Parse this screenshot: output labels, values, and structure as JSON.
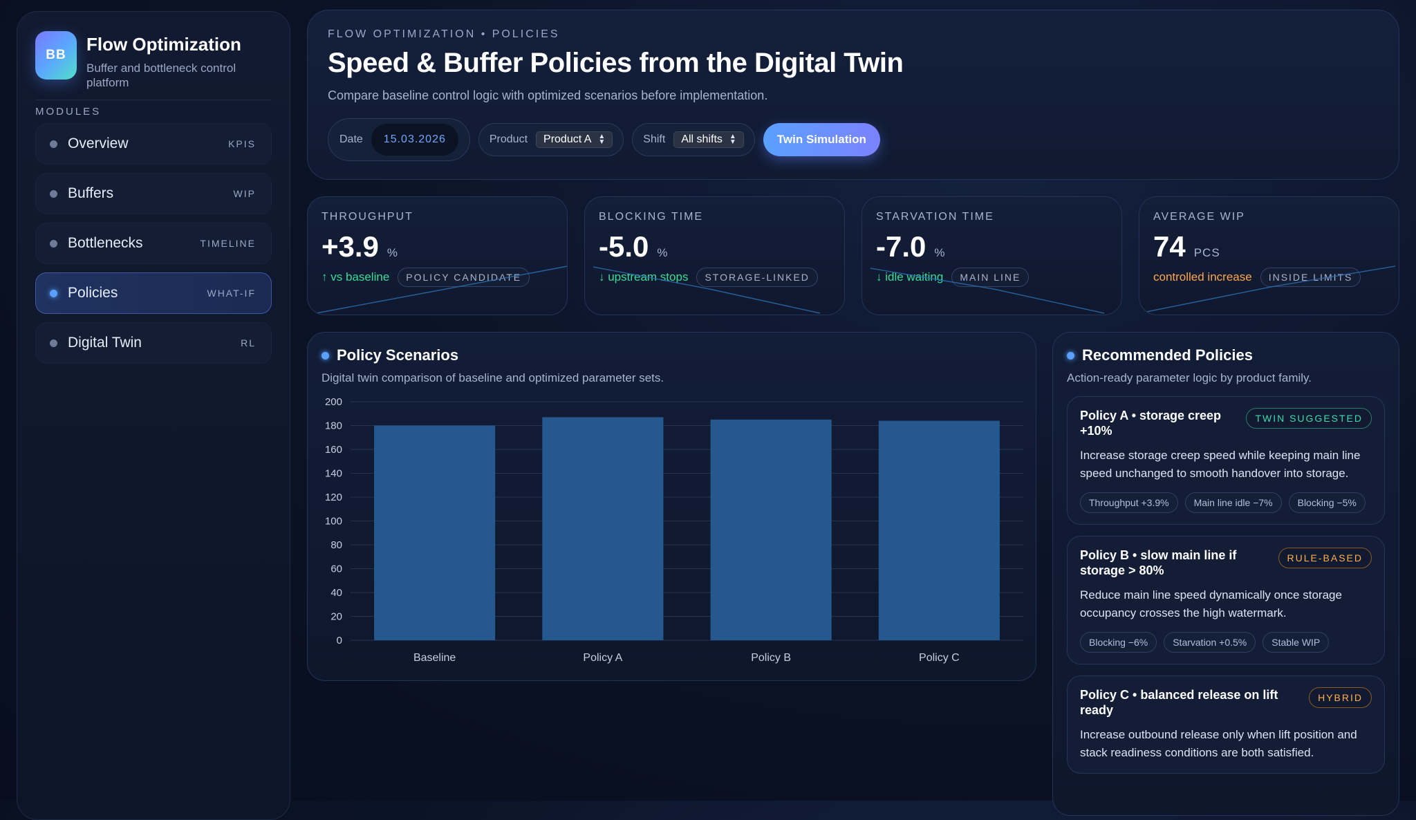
{
  "brand": {
    "logo": "BB",
    "title": "Flow Optimization",
    "subtitle": "Buffer and bottleneck control platform"
  },
  "sidebar": {
    "modules_label": "MODULES",
    "items": [
      {
        "label": "Overview",
        "tag": "KPIS",
        "active": false
      },
      {
        "label": "Buffers",
        "tag": "WIP",
        "active": false
      },
      {
        "label": "Bottlenecks",
        "tag": "TIMELINE",
        "active": false
      },
      {
        "label": "Policies",
        "tag": "WHAT-IF",
        "active": true
      },
      {
        "label": "Digital Twin",
        "tag": "RL",
        "active": false
      }
    ]
  },
  "header": {
    "eyebrow": "FLOW OPTIMIZATION • POLICIES",
    "title": "Speed & Buffer Policies from the Digital Twin",
    "subtitle": "Compare baseline control logic with optimized scenarios before implementation.",
    "date_label": "Date",
    "date_value": "15.03.2026",
    "product_label": "Product",
    "product_value": "Product A",
    "shift_label": "Shift",
    "shift_value": "All shifts",
    "action_label": "Twin Simulation"
  },
  "kpis": [
    {
      "label": "THROUGHPUT",
      "value": "+3.9",
      "unit": "%",
      "trend": "↑ vs baseline",
      "trend_color": "#3ddc97",
      "pill": "POLICY CANDIDATE"
    },
    {
      "label": "BLOCKING TIME",
      "value": "-5.0",
      "unit": "%",
      "trend": "↓ upstream stops",
      "trend_color": "#3ddc97",
      "pill": "STORAGE-LINKED"
    },
    {
      "label": "STARVATION TIME",
      "value": "-7.0",
      "unit": "%",
      "trend": "↓ idle waiting",
      "trend_color": "#3ddc97",
      "pill": "MAIN LINE"
    },
    {
      "label": "AVERAGE WIP",
      "value": "74",
      "unit": "PCS",
      "trend": "controlled increase",
      "trend_color": "#ffa64d",
      "pill": "INSIDE LIMITS"
    }
  ],
  "scenarios": {
    "title": "Policy Scenarios",
    "subtitle": "Digital twin comparison of baseline and optimized parameter sets."
  },
  "chart_data": {
    "type": "bar",
    "categories": [
      "Baseline",
      "Policy A",
      "Policy B",
      "Policy C"
    ],
    "values": [
      180,
      187,
      185,
      184
    ],
    "ylim": [
      0,
      200
    ],
    "yticks": [
      0,
      20,
      40,
      60,
      80,
      100,
      120,
      140,
      160,
      180,
      200
    ],
    "grid": true,
    "bar_color": "#24588e",
    "title": "",
    "xlabel": "",
    "ylabel": ""
  },
  "recommendations": {
    "title": "Recommended Policies",
    "subtitle": "Action-ready parameter logic by product family.",
    "policies": [
      {
        "title": "Policy A • storage creep +10%",
        "badge": "TWIN SUGGESTED",
        "desc": "Increase storage creep speed while keeping main line speed unchanged to smooth handover into storage.",
        "chips": [
          "Throughput +3.9%",
          "Main line idle −7%",
          "Blocking −5%"
        ]
      },
      {
        "title": "Policy B • slow main line if storage > 80%",
        "badge": "RULE-BASED",
        "desc": "Reduce main line speed dynamically once storage occupancy crosses the high watermark.",
        "chips": [
          "Blocking −6%",
          "Starvation +0.5%",
          "Stable WIP"
        ]
      },
      {
        "title": "Policy C • balanced release on lift ready",
        "badge": "HYBRID",
        "desc": "Increase outbound release only when lift position and stack readiness conditions are both satisfied.",
        "chips": []
      }
    ]
  }
}
